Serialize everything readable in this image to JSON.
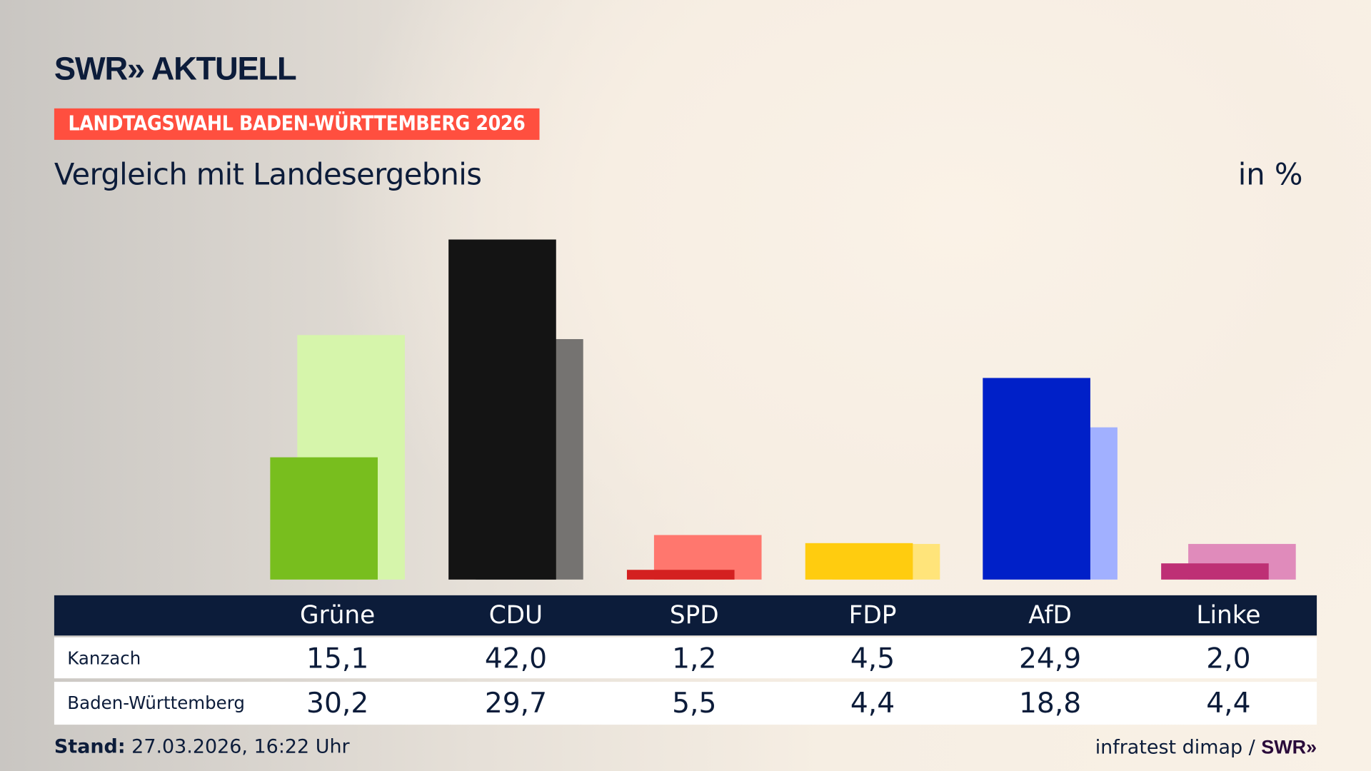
{
  "logo": "SWR» AKTUELL",
  "banner": "LANDTAGSWAHL BADEN-WÜRTTEMBERG 2026",
  "subtitle": "Vergleich mit Landesergebnis",
  "unit": "in %",
  "chart_data": {
    "type": "bar",
    "categories": [
      "Grüne",
      "CDU",
      "SPD",
      "FDP",
      "AfD",
      "Linke"
    ],
    "series": [
      {
        "name": "Kanzach",
        "values": [
          15.1,
          42.0,
          1.2,
          4.5,
          24.9,
          2.0
        ],
        "labels": [
          "15,1",
          "42,0",
          "1,2",
          "4,5",
          "24,9",
          "2,0"
        ]
      },
      {
        "name": "Baden-Württemberg",
        "values": [
          30.2,
          29.7,
          5.5,
          4.4,
          18.8,
          4.4
        ],
        "labels": [
          "30,2",
          "29,7",
          "5,5",
          "4,4",
          "18,8",
          "4,4"
        ]
      }
    ],
    "colors": {
      "Grüne": [
        "#78be1e",
        "#d6f5ab"
      ],
      "CDU": [
        "#141414",
        "#757371"
      ],
      "SPD": [
        "#d42020",
        "#ff776e"
      ],
      "FDP": [
        "#ffcc0f",
        "#ffe47a"
      ],
      "AfD": [
        "#0020c8",
        "#a1b0ff"
      ],
      "Linke": [
        "#be3075",
        "#e08bbb"
      ]
    },
    "ylim": [
      0,
      42
    ],
    "grid": false,
    "legend": "table-below"
  },
  "footer": {
    "stand_label": "Stand:",
    "stand_value": " 27.03.2026, 16:22 Uhr",
    "source": "infratest dimap / ",
    "source_logo": "SWR»"
  }
}
